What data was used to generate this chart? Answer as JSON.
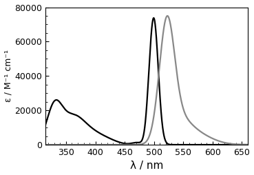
{
  "xlim": [
    315,
    660
  ],
  "ylim": [
    0,
    80000
  ],
  "xticks": [
    350,
    400,
    450,
    500,
    550,
    600,
    650
  ],
  "yticks": [
    0,
    20000,
    40000,
    60000,
    80000
  ],
  "xlabel": "λ / nm",
  "ylabel": "ε / M⁻¹ cm⁻¹",
  "abs_color": "#000000",
  "fl_color": "#888888",
  "background_color": "#ffffff",
  "linewidth": 1.6,
  "fig_width": 3.69,
  "fig_height": 2.54,
  "dpi": 100
}
